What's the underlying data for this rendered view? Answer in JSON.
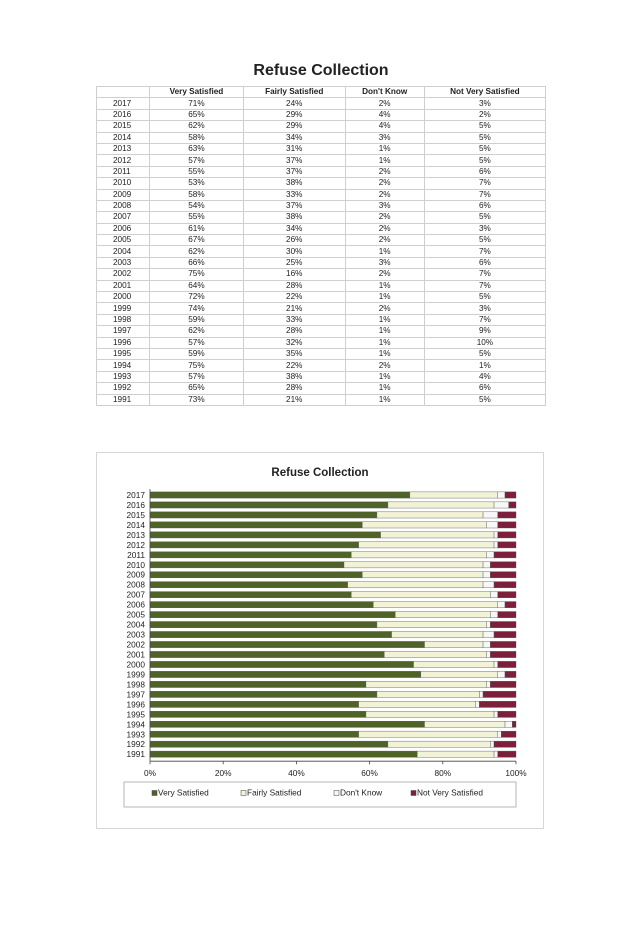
{
  "page_title": "Refuse Collection",
  "table": {
    "headers": [
      "",
      "Very Satisfied",
      "Fairly Satisfied",
      "Don't Know",
      "Not Very Satisfied"
    ],
    "rows": [
      [
        "2017",
        "71%",
        "24%",
        "2%",
        "3%"
      ],
      [
        "2016",
        "65%",
        "29%",
        "4%",
        "2%"
      ],
      [
        "2015",
        "62%",
        "29%",
        "4%",
        "5%"
      ],
      [
        "2014",
        "58%",
        "34%",
        "3%",
        "5%"
      ],
      [
        "2013",
        "63%",
        "31%",
        "1%",
        "5%"
      ],
      [
        "2012",
        "57%",
        "37%",
        "1%",
        "5%"
      ],
      [
        "2011",
        "55%",
        "37%",
        "2%",
        "6%"
      ],
      [
        "2010",
        "53%",
        "38%",
        "2%",
        "7%"
      ],
      [
        "2009",
        "58%",
        "33%",
        "2%",
        "7%"
      ],
      [
        "2008",
        "54%",
        "37%",
        "3%",
        "6%"
      ],
      [
        "2007",
        "55%",
        "38%",
        "2%",
        "5%"
      ],
      [
        "2006",
        "61%",
        "34%",
        "2%",
        "3%"
      ],
      [
        "2005",
        "67%",
        "26%",
        "2%",
        "5%"
      ],
      [
        "2004",
        "62%",
        "30%",
        "1%",
        "7%"
      ],
      [
        "2003",
        "66%",
        "25%",
        "3%",
        "6%"
      ],
      [
        "2002",
        "75%",
        "16%",
        "2%",
        "7%"
      ],
      [
        "2001",
        "64%",
        "28%",
        "1%",
        "7%"
      ],
      [
        "2000",
        "72%",
        "22%",
        "1%",
        "5%"
      ],
      [
        "1999",
        "74%",
        "21%",
        "2%",
        "3%"
      ],
      [
        "1998",
        "59%",
        "33%",
        "1%",
        "7%"
      ],
      [
        "1997",
        "62%",
        "28%",
        "1%",
        "9%"
      ],
      [
        "1996",
        "57%",
        "32%",
        "1%",
        "10%"
      ],
      [
        "1995",
        "59%",
        "35%",
        "1%",
        "5%"
      ],
      [
        "1994",
        "75%",
        "22%",
        "2%",
        "1%"
      ],
      [
        "1993",
        "57%",
        "38%",
        "1%",
        "4%"
      ],
      [
        "1992",
        "65%",
        "28%",
        "1%",
        "6%"
      ],
      [
        "1991",
        "73%",
        "21%",
        "1%",
        "5%"
      ]
    ]
  },
  "chart_data": {
    "type": "bar",
    "orientation": "horizontal",
    "stacked": "percent",
    "title": "Refuse Collection",
    "categories": [
      "2017",
      "2016",
      "2015",
      "2014",
      "2013",
      "2012",
      "2011",
      "2010",
      "2009",
      "2008",
      "2007",
      "2006",
      "2005",
      "2004",
      "2003",
      "2002",
      "2001",
      "2000",
      "1999",
      "1998",
      "1997",
      "1996",
      "1995",
      "1994",
      "1993",
      "1992",
      "1991"
    ],
    "series": [
      {
        "name": "Very Satisfied",
        "color": "#4f6228",
        "values": [
          71,
          65,
          62,
          58,
          63,
          57,
          55,
          53,
          58,
          54,
          55,
          61,
          67,
          62,
          66,
          75,
          64,
          72,
          74,
          59,
          62,
          57,
          59,
          75,
          57,
          65,
          73
        ]
      },
      {
        "name": "Fairly Satisfied",
        "color": "#f2f2d6",
        "values": [
          24,
          29,
          29,
          34,
          31,
          37,
          37,
          38,
          33,
          37,
          38,
          34,
          26,
          30,
          25,
          16,
          28,
          22,
          21,
          33,
          28,
          32,
          35,
          22,
          38,
          28,
          21
        ]
      },
      {
        "name": "Don't Know",
        "color": "#f7f7f7",
        "values": [
          2,
          4,
          4,
          3,
          1,
          1,
          2,
          2,
          2,
          3,
          2,
          2,
          2,
          1,
          3,
          2,
          1,
          1,
          2,
          1,
          1,
          1,
          1,
          2,
          1,
          1,
          1
        ]
      },
      {
        "name": "Not Very Satisfied",
        "color": "#7b1f3a",
        "values": [
          3,
          2,
          5,
          5,
          5,
          5,
          6,
          7,
          7,
          6,
          5,
          3,
          5,
          7,
          6,
          7,
          7,
          5,
          3,
          7,
          9,
          10,
          5,
          1,
          4,
          6,
          5
        ]
      }
    ],
    "xlim": [
      0,
      100
    ],
    "xticks": [
      "0%",
      "20%",
      "40%",
      "60%",
      "80%",
      "100%"
    ],
    "grid": false,
    "legend_position": "bottom"
  }
}
